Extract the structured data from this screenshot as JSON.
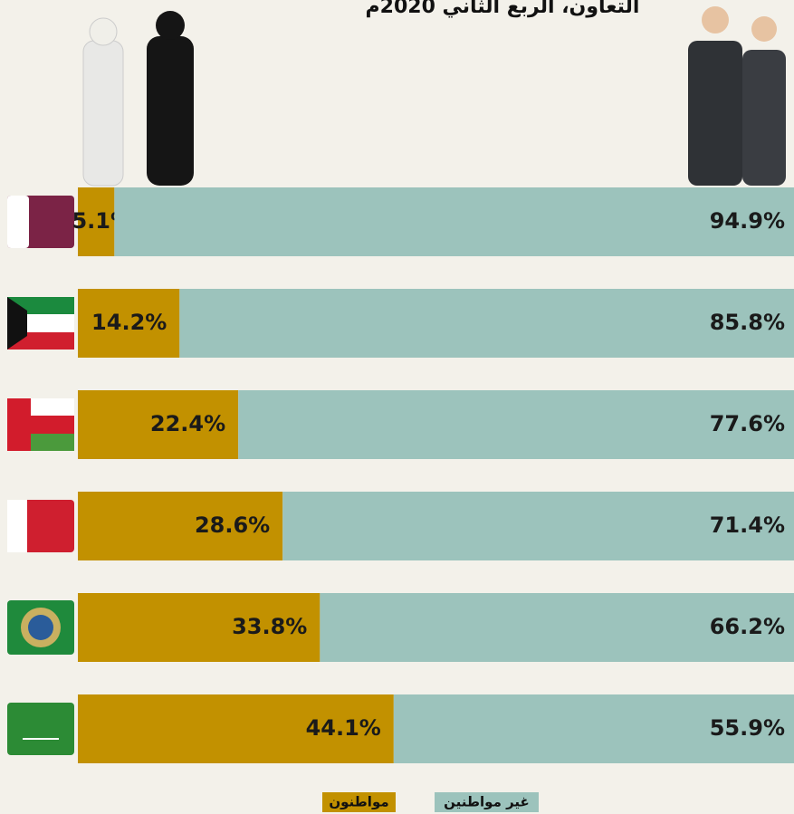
{
  "chart_data": {
    "type": "stacked-bar-horizontal",
    "title": "التعاون، الربع الثاني 2020م",
    "categories": [
      null,
      null,
      null,
      null,
      null,
      null
    ],
    "xlim": [
      0,
      100
    ],
    "series": [
      {
        "name": "مواطنون",
        "color": "#c29100",
        "values": [
          5.1,
          14.2,
          22.4,
          28.6,
          33.8,
          44.1
        ],
        "value_labels": [
          "5.1%",
          "14.2%",
          "22.4%",
          "28.6%",
          "33.8%",
          "44.1%"
        ]
      },
      {
        "name": "غير مواطنين",
        "color": "#9cc3bc",
        "values": [
          94.9,
          85.8,
          77.6,
          71.4,
          66.2,
          55.9
        ],
        "value_labels": [
          "94.9%",
          "85.8%",
          "77.6%",
          "71.4%",
          "66.2%",
          "55.9%"
        ]
      }
    ]
  }
}
